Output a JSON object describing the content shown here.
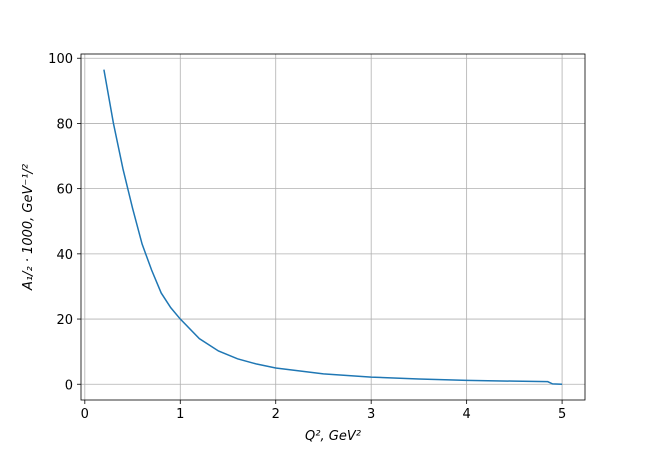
{
  "chart_data": {
    "type": "line",
    "xlabel": "Q², GeV²",
    "ylabel": "A₁/₂ · 1000, GeV⁻¹/²",
    "x": [
      0.2,
      0.3,
      0.4,
      0.5,
      0.6,
      0.7,
      0.8,
      0.9,
      1.0,
      1.2,
      1.4,
      1.6,
      1.8,
      2.0,
      2.5,
      3.0,
      3.5,
      4.0,
      4.5,
      4.85,
      4.9,
      5.0
    ],
    "series": [
      {
        "color": "#1f77b4",
        "values": [
          96.5,
          80,
          66,
          54,
          43,
          35,
          28,
          23.5,
          20,
          14,
          10.2,
          7.8,
          6.2,
          5,
          3.2,
          2.2,
          1.6,
          1.2,
          0.95,
          0.8,
          0.1,
          0
        ]
      }
    ],
    "xlim": [
      -0.04,
      5.24
    ],
    "ylim": [
      -4.83,
      101.3
    ],
    "xticks": [
      0,
      1,
      2,
      3,
      4,
      5
    ],
    "yticks": [
      0,
      20,
      40,
      60,
      80,
      100
    ],
    "grid": true
  }
}
